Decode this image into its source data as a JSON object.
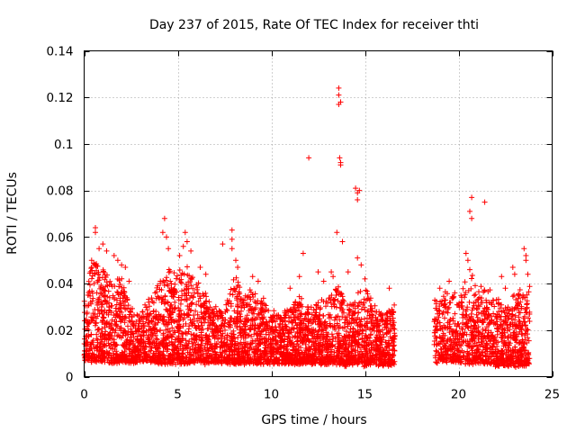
{
  "chart_data": {
    "type": "scatter",
    "title": "Day 237 of 2015, Rate Of TEC Index for receiver thti",
    "xlabel": "GPS time / hours",
    "ylabel": "ROTI / TECUs",
    "xlim": [
      0,
      25
    ],
    "ylim": [
      0,
      0.14
    ],
    "xticks": [
      0,
      5,
      10,
      15,
      20,
      25
    ],
    "xtick_labels": [
      "0",
      "5",
      "10",
      "15",
      "20",
      "25"
    ],
    "yticks": [
      0,
      0.02,
      0.04,
      0.06,
      0.08,
      0.1,
      0.12,
      0.14
    ],
    "ytick_labels": [
      "0",
      "0.02",
      "0.04",
      "0.06",
      "0.08",
      "0.1",
      "0.12",
      "0.14"
    ],
    "grid": true,
    "marker": "+",
    "color": "#ff0000",
    "data_gap_hours": [
      16.6,
      18.7
    ],
    "envelope": {
      "x": [
        0.0,
        0.3,
        0.6,
        1.0,
        1.5,
        2.0,
        2.5,
        3.0,
        3.5,
        4.0,
        4.5,
        5.0,
        5.5,
        6.0,
        6.5,
        7.0,
        7.5,
        8.0,
        8.5,
        9.0,
        9.5,
        10.0,
        10.5,
        11.0,
        11.5,
        12.0,
        12.5,
        13.0,
        13.5,
        14.0,
        14.5,
        15.0,
        15.5,
        16.0,
        16.6,
        18.7,
        19.0,
        19.5,
        20.0,
        20.5,
        21.0,
        21.5,
        22.0,
        22.5,
        23.0,
        23.5,
        23.8
      ],
      "upper": [
        0.034,
        0.046,
        0.05,
        0.046,
        0.04,
        0.042,
        0.03,
        0.028,
        0.034,
        0.04,
        0.048,
        0.045,
        0.048,
        0.042,
        0.035,
        0.03,
        0.028,
        0.045,
        0.035,
        0.038,
        0.035,
        0.028,
        0.028,
        0.03,
        0.034,
        0.03,
        0.035,
        0.033,
        0.042,
        0.03,
        0.035,
        0.04,
        0.03,
        0.028,
        0.03,
        0.034,
        0.034,
        0.038,
        0.033,
        0.045,
        0.04,
        0.038,
        0.034,
        0.03,
        0.036,
        0.038,
        0.04
      ],
      "lower": [
        0.008,
        0.007,
        0.007,
        0.007,
        0.006,
        0.007,
        0.006,
        0.007,
        0.007,
        0.006,
        0.006,
        0.006,
        0.006,
        0.007,
        0.006,
        0.007,
        0.006,
        0.006,
        0.006,
        0.006,
        0.006,
        0.006,
        0.006,
        0.006,
        0.006,
        0.006,
        0.006,
        0.006,
        0.006,
        0.005,
        0.006,
        0.005,
        0.006,
        0.005,
        0.006,
        0.006,
        0.007,
        0.007,
        0.007,
        0.006,
        0.006,
        0.006,
        0.005,
        0.005,
        0.005,
        0.005,
        0.006
      ]
    },
    "outliers": [
      {
        "x": 0.4,
        "y": 0.05
      },
      {
        "x": 0.4,
        "y": 0.047
      },
      {
        "x": 0.6,
        "y": 0.064
      },
      {
        "x": 0.6,
        "y": 0.062
      },
      {
        "x": 0.8,
        "y": 0.055
      },
      {
        "x": 1.0,
        "y": 0.057
      },
      {
        "x": 1.2,
        "y": 0.054
      },
      {
        "x": 1.6,
        "y": 0.052
      },
      {
        "x": 1.8,
        "y": 0.05
      },
      {
        "x": 2.0,
        "y": 0.048
      },
      {
        "x": 2.2,
        "y": 0.047
      },
      {
        "x": 2.4,
        "y": 0.041
      },
      {
        "x": 4.2,
        "y": 0.062
      },
      {
        "x": 4.3,
        "y": 0.068
      },
      {
        "x": 4.4,
        "y": 0.06
      },
      {
        "x": 4.5,
        "y": 0.055
      },
      {
        "x": 5.1,
        "y": 0.052
      },
      {
        "x": 5.3,
        "y": 0.056
      },
      {
        "x": 5.4,
        "y": 0.062
      },
      {
        "x": 5.5,
        "y": 0.058
      },
      {
        "x": 5.7,
        "y": 0.054
      },
      {
        "x": 6.2,
        "y": 0.047
      },
      {
        "x": 6.5,
        "y": 0.044
      },
      {
        "x": 7.4,
        "y": 0.057
      },
      {
        "x": 7.9,
        "y": 0.063
      },
      {
        "x": 7.9,
        "y": 0.059
      },
      {
        "x": 7.9,
        "y": 0.055
      },
      {
        "x": 8.1,
        "y": 0.05
      },
      {
        "x": 8.2,
        "y": 0.047
      },
      {
        "x": 9.0,
        "y": 0.043
      },
      {
        "x": 9.3,
        "y": 0.041
      },
      {
        "x": 11.0,
        "y": 0.038
      },
      {
        "x": 11.5,
        "y": 0.043
      },
      {
        "x": 11.7,
        "y": 0.053
      },
      {
        "x": 12.0,
        "y": 0.094
      },
      {
        "x": 12.5,
        "y": 0.045
      },
      {
        "x": 12.8,
        "y": 0.041
      },
      {
        "x": 13.2,
        "y": 0.045
      },
      {
        "x": 13.3,
        "y": 0.043
      },
      {
        "x": 13.5,
        "y": 0.062
      },
      {
        "x": 13.6,
        "y": 0.124
      },
      {
        "x": 13.6,
        "y": 0.121
      },
      {
        "x": 13.6,
        "y": 0.117
      },
      {
        "x": 13.65,
        "y": 0.094
      },
      {
        "x": 13.7,
        "y": 0.092
      },
      {
        "x": 13.7,
        "y": 0.091
      },
      {
        "x": 13.7,
        "y": 0.118
      },
      {
        "x": 13.8,
        "y": 0.058
      },
      {
        "x": 14.1,
        "y": 0.045
      },
      {
        "x": 14.5,
        "y": 0.081
      },
      {
        "x": 14.6,
        "y": 0.079
      },
      {
        "x": 14.6,
        "y": 0.076
      },
      {
        "x": 14.7,
        "y": 0.08
      },
      {
        "x": 14.6,
        "y": 0.051
      },
      {
        "x": 14.8,
        "y": 0.048
      },
      {
        "x": 15.0,
        "y": 0.042
      },
      {
        "x": 16.3,
        "y": 0.038
      },
      {
        "x": 19.0,
        "y": 0.038
      },
      {
        "x": 19.5,
        "y": 0.041
      },
      {
        "x": 19.8,
        "y": 0.036
      },
      {
        "x": 20.4,
        "y": 0.053
      },
      {
        "x": 20.5,
        "y": 0.05
      },
      {
        "x": 20.6,
        "y": 0.046
      },
      {
        "x": 20.6,
        "y": 0.071
      },
      {
        "x": 20.7,
        "y": 0.077
      },
      {
        "x": 20.7,
        "y": 0.068
      },
      {
        "x": 21.4,
        "y": 0.075
      },
      {
        "x": 22.3,
        "y": 0.043
      },
      {
        "x": 22.5,
        "y": 0.038
      },
      {
        "x": 22.9,
        "y": 0.047
      },
      {
        "x": 23.0,
        "y": 0.044
      },
      {
        "x": 23.5,
        "y": 0.055
      },
      {
        "x": 23.6,
        "y": 0.052
      },
      {
        "x": 23.6,
        "y": 0.05
      },
      {
        "x": 23.7,
        "y": 0.044
      }
    ]
  }
}
